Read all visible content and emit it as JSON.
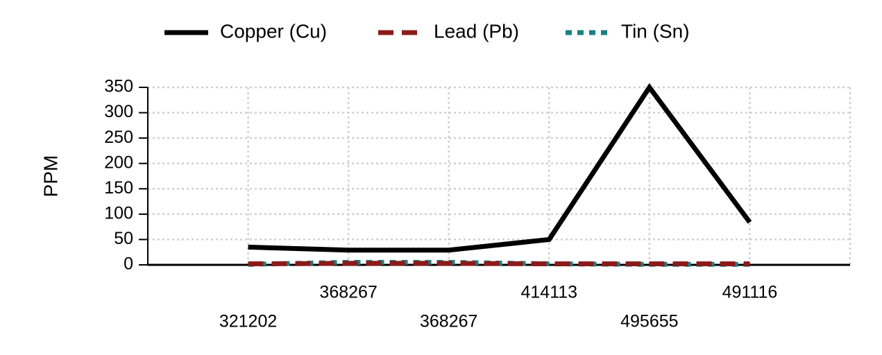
{
  "chart_data": {
    "type": "line",
    "y_label": "PPM",
    "categories": [
      "321202",
      "368267",
      "368267",
      "414113",
      "495655",
      "491116"
    ],
    "series": [
      {
        "name": "Copper (Cu)",
        "color": "#000000",
        "dash": "solid",
        "values": [
          35,
          29,
          29,
          50,
          350,
          84
        ]
      },
      {
        "name": "Lead (Pb)",
        "color": "#8b1a1a",
        "dash": "dashed",
        "values": [
          2,
          3,
          3,
          2,
          2,
          2
        ]
      },
      {
        "name": "Tin (Sn)",
        "color": "#1a8080",
        "dash": "dotted",
        "values": [
          1,
          5,
          5,
          2,
          1,
          1
        ]
      }
    ],
    "ylim": [
      0,
      350
    ],
    "yticks": [
      0,
      50,
      100,
      150,
      200,
      250,
      300,
      350
    ],
    "grid": true,
    "legend": "top"
  }
}
